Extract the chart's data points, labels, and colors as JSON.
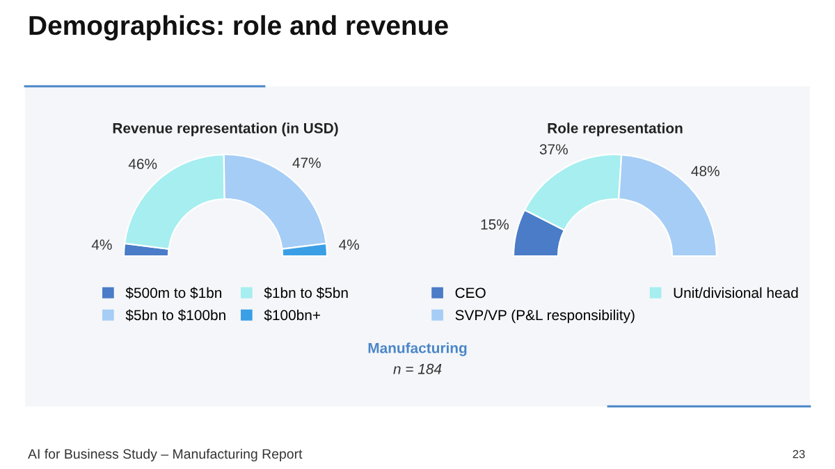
{
  "chart_data": [
    {
      "type": "donut",
      "title": "Revenue representation (in USD)",
      "categories": [
        "$500m to $1bn",
        "$1bn to $5bn",
        "$5bn to $100bn",
        "$100bn+"
      ],
      "values": [
        4,
        46,
        47,
        4
      ],
      "value_labels": [
        "4%",
        "46%",
        "47%",
        "4%"
      ],
      "colors": [
        "#4a7cc7",
        "#a6eef0",
        "#a6cdf5",
        "#3b9fe6"
      ],
      "legend": "bottom",
      "annotations": [
        "Demographics: role and revenue",
        "Manufacturing",
        "n = 184",
        "AI for Business Study – Manufacturing Report",
        "23"
      ]
    },
    {
      "type": "donut",
      "title": "Role representation",
      "categories": [
        "CEO",
        "Unit/divisional head",
        "SVP/VP (P&L responsibility)"
      ],
      "values": [
        15,
        37,
        48
      ],
      "value_labels": [
        "15%",
        "37%",
        "48%"
      ],
      "colors": [
        "#4a7cc7",
        "#a6eef0",
        "#a6cdf5"
      ],
      "legend": "bottom"
    }
  ]
}
